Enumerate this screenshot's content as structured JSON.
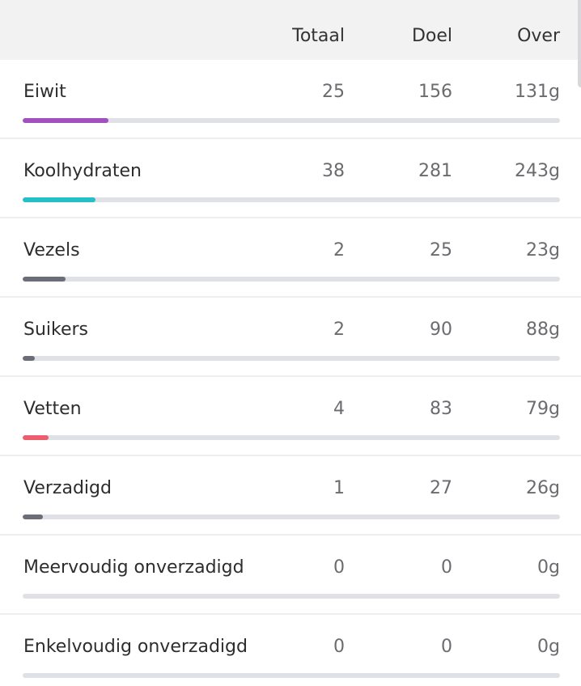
{
  "header": {
    "total": "Totaal",
    "goal": "Doel",
    "left": "Over"
  },
  "colors": {
    "eiwit": "#a150c0",
    "koolhydraten": "#25bfc6",
    "vezels": "#6b6e78",
    "suikers": "#6b6e78",
    "vetten": "#ec5d6d",
    "verzadigd": "#6b6e78",
    "track": "#dfe1e6"
  },
  "rows": [
    {
      "name": "Eiwit",
      "total": "25",
      "goal": "156",
      "left": "131g",
      "progress": 0.16,
      "color": "#a150c0"
    },
    {
      "name": "Koolhydraten",
      "total": "38",
      "goal": "281",
      "left": "243g",
      "progress": 0.135,
      "color": "#25bfc6"
    },
    {
      "name": "Vezels",
      "total": "2",
      "goal": "25",
      "left": "23g",
      "progress": 0.08,
      "color": "#6b6e78"
    },
    {
      "name": "Suikers",
      "total": "2",
      "goal": "90",
      "left": "88g",
      "progress": 0.022,
      "color": "#6b6e78"
    },
    {
      "name": "Vetten",
      "total": "4",
      "goal": "83",
      "left": "79g",
      "progress": 0.048,
      "color": "#ec5d6d"
    },
    {
      "name": "Verzadigd",
      "total": "1",
      "goal": "27",
      "left": "26g",
      "progress": 0.037,
      "color": "#6b6e78"
    },
    {
      "name": "Meervoudig onverzadigd",
      "total": "0",
      "goal": "0",
      "left": "0g",
      "progress": 0,
      "color": "#6b6e78"
    },
    {
      "name": "Enkelvoudig onverzadigd",
      "total": "0",
      "goal": "0",
      "left": "0g",
      "progress": 0,
      "color": "#6b6e78"
    }
  ]
}
